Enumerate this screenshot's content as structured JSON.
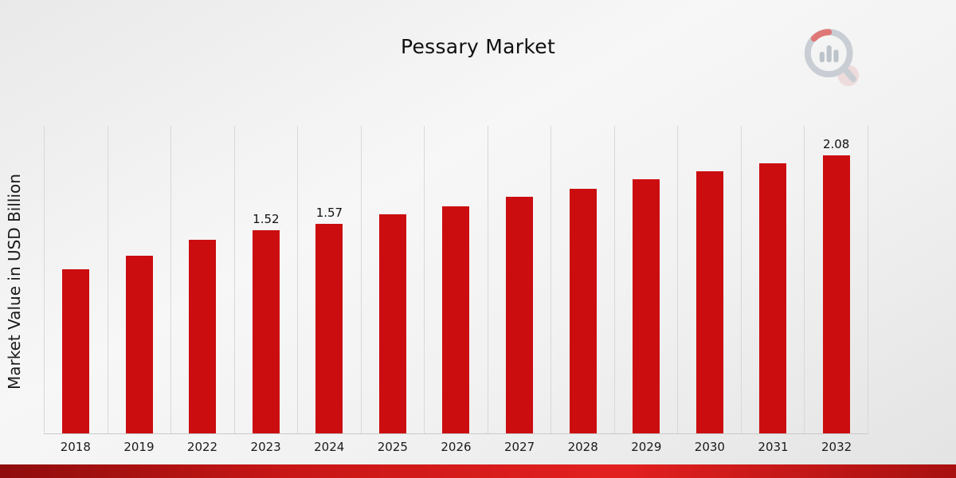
{
  "page": {
    "title": "Pessary Market"
  },
  "chart_data": {
    "type": "bar",
    "title": "Pessary Market",
    "xlabel": "",
    "ylabel": "Market Value in USD Billion",
    "categories": [
      "2018",
      "2019",
      "2022",
      "2023",
      "2024",
      "2025",
      "2026",
      "2027",
      "2028",
      "2029",
      "2030",
      "2031",
      "2032"
    ],
    "values": [
      1.23,
      1.33,
      1.45,
      1.52,
      1.57,
      1.64,
      1.7,
      1.77,
      1.83,
      1.9,
      1.96,
      2.02,
      2.08
    ],
    "labeled_points": {
      "2023": "1.52",
      "2024": "1.57",
      "2032": "2.08"
    },
    "bar_color": "#cb0d10",
    "ylim": [
      0,
      2.3
    ],
    "grid": "vertical",
    "legend": "none"
  },
  "logo": {
    "name": "market-research-chart-logo",
    "gray": "#c5cad1",
    "red": "#dd6a6a"
  }
}
